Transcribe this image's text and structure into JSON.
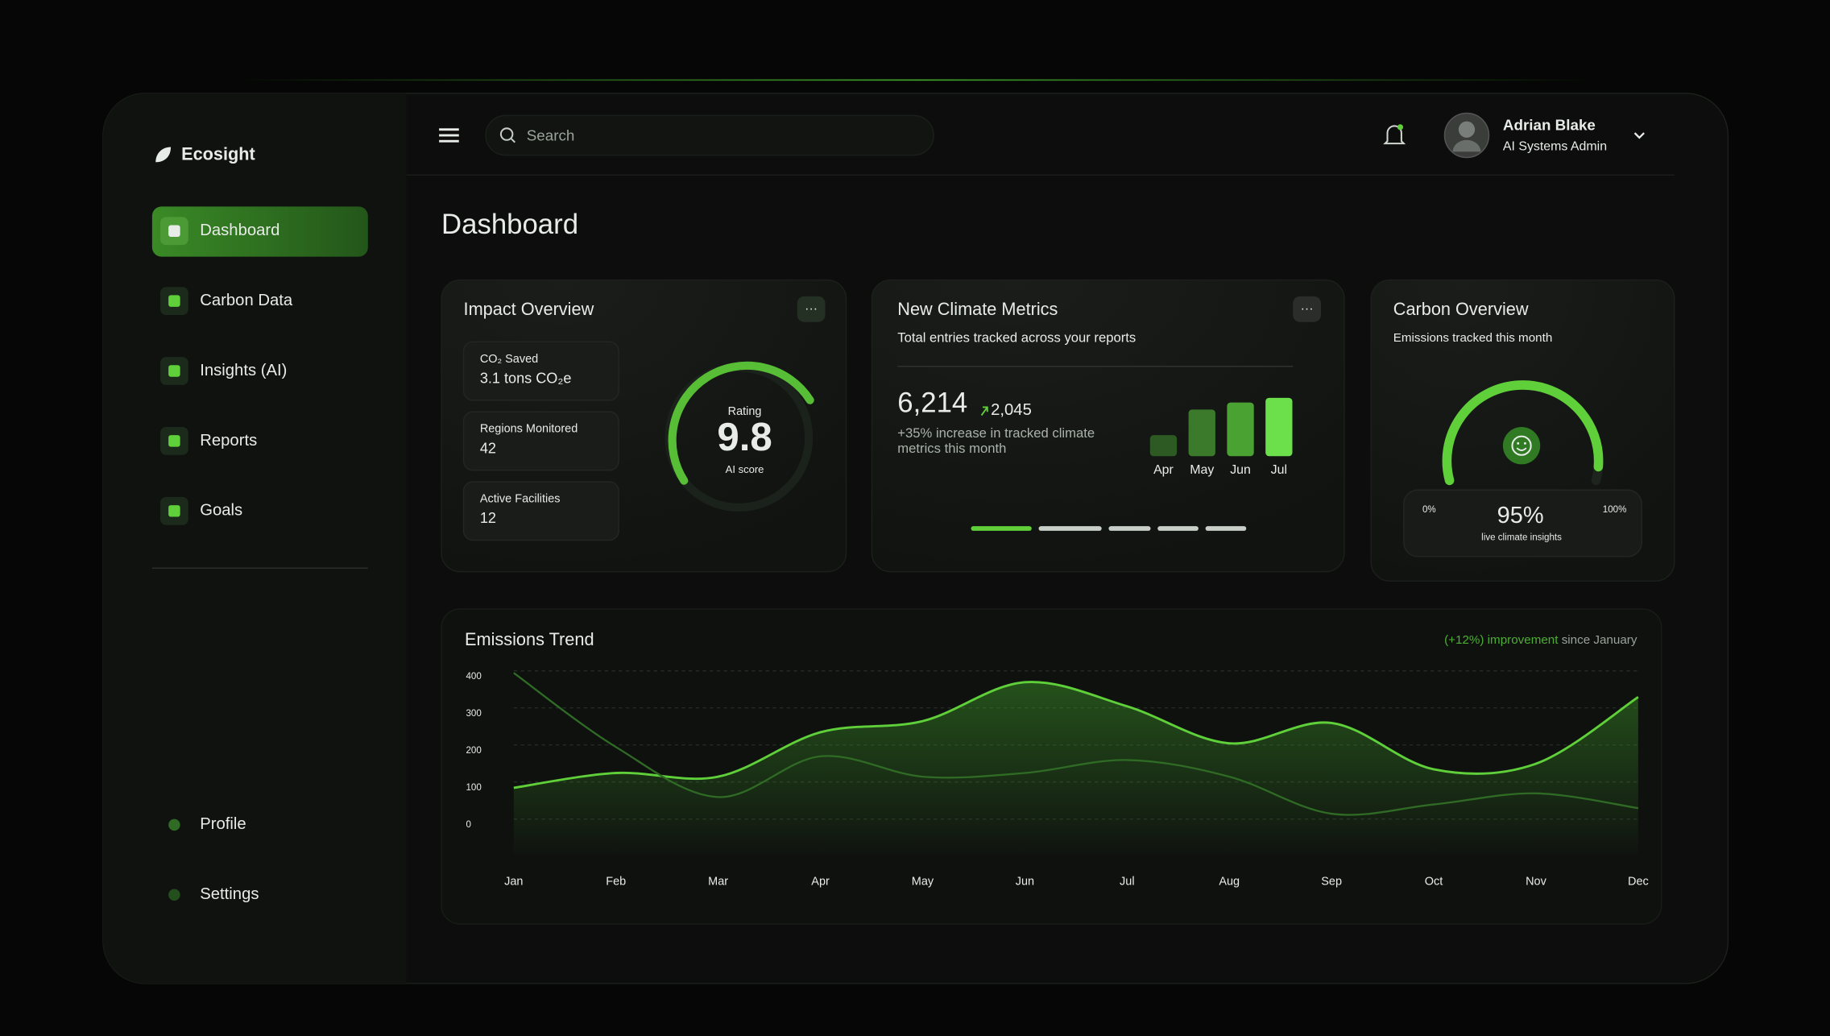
{
  "brand": "Ecosight",
  "nav": {
    "items": [
      "Dashboard",
      "Carbon Data",
      "Insights (AI)",
      "Reports",
      "Goals"
    ],
    "bottom": [
      "Profile",
      "Settings"
    ]
  },
  "header": {
    "search_placeholder": "Search",
    "user_name": "Adrian Blake",
    "user_role": "AI Systems Admin"
  },
  "page_title": "Dashboard",
  "impact": {
    "title": "Impact Overview",
    "stats": [
      {
        "label": "CO₂ Saved",
        "value": "3.1 tons CO₂e"
      },
      {
        "label": "Regions Monitored",
        "value": "42"
      },
      {
        "label": "Active Facilities",
        "value": "12"
      }
    ],
    "gauge": {
      "label": "Rating",
      "value": "9.8",
      "caption": "AI score"
    }
  },
  "climate": {
    "title": "New Climate Metrics",
    "subtitle": "Total entries tracked across your reports",
    "total": "6,214",
    "delta": "2,045",
    "note": "+35% increase in tracked climate metrics this month",
    "chart_data": {
      "type": "bar",
      "categories": [
        "Apr",
        "May",
        "Jun",
        "Jul"
      ],
      "values": [
        18,
        40,
        46,
        50
      ],
      "colors": [
        "#2d5a22",
        "#3a7a2a",
        "#4aa232",
        "#6be04a"
      ]
    }
  },
  "carbon": {
    "title": "Carbon Overview",
    "subtitle": "Emissions tracked this month",
    "gauge": {
      "min": {
        "value": 0,
        "label": "0%"
      },
      "max": {
        "value": 100,
        "label": "100%"
      },
      "value": 95,
      "value_label": "95%",
      "caption": "live climate insights"
    }
  },
  "trend": {
    "chart_data": {
      "type": "line",
      "title": "Emissions Trend",
      "annotation": [
        "(+12%) improvement",
        "since January"
      ],
      "categories": [
        "Jan",
        "Feb",
        "Mar",
        "Apr",
        "May",
        "Jun",
        "Jul",
        "Aug",
        "Sep",
        "Oct",
        "Nov",
        "Dec"
      ],
      "series": [
        {
          "color": "#5fcf3a",
          "values": [
            100,
            140,
            130,
            250,
            280,
            385,
            320,
            220,
            275,
            150,
            165,
            345
          ]
        },
        {
          "color": "#2f6b25",
          "values": [
            410,
            210,
            75,
            185,
            130,
            140,
            175,
            130,
            30,
            55,
            85,
            45
          ]
        }
      ],
      "ylim": [
        0,
        400
      ],
      "yticks": [
        0,
        100,
        200,
        300,
        400
      ],
      "grid": true
    }
  }
}
